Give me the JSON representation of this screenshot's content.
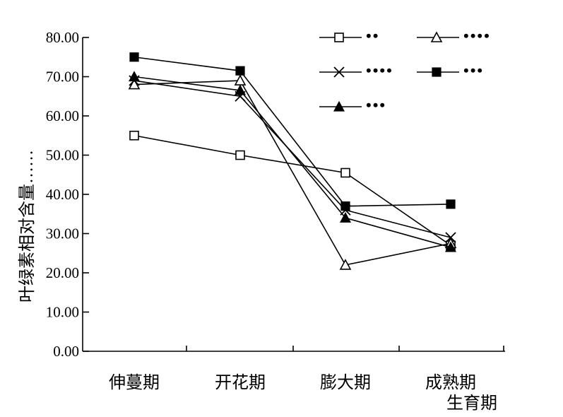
{
  "chart_data": {
    "type": "line",
    "ylabel": "叶绿素相对含量……",
    "xlabel_line2": "生育期",
    "categories": [
      "伸蔓期",
      "开花期",
      "膨大期",
      "成熟期"
    ],
    "ylim": [
      0,
      80
    ],
    "yticks": [
      "0.00",
      "10.00",
      "20.00",
      "30.00",
      "40.00",
      "50.00",
      "60.00",
      "70.00",
      "80.00"
    ],
    "grid": false,
    "legend_position": "top-right",
    "series": [
      {
        "marker": "open-square",
        "legend_text": "••",
        "values": [
          55.0,
          50.0,
          45.5,
          27.0
        ]
      },
      {
        "marker": "open-triangle",
        "legend_text": "••••",
        "values": [
          68.0,
          69.0,
          22.0,
          27.5
        ]
      },
      {
        "marker": "cross",
        "legend_text": "••••",
        "values": [
          69.0,
          65.0,
          36.0,
          29.0
        ]
      },
      {
        "marker": "filled-square",
        "legend_text": "•••",
        "values": [
          75.0,
          71.5,
          37.0,
          37.5
        ]
      },
      {
        "marker": "filled-triangle",
        "legend_text": "•••",
        "values": [
          70.0,
          66.5,
          34.0,
          26.5
        ]
      }
    ]
  }
}
